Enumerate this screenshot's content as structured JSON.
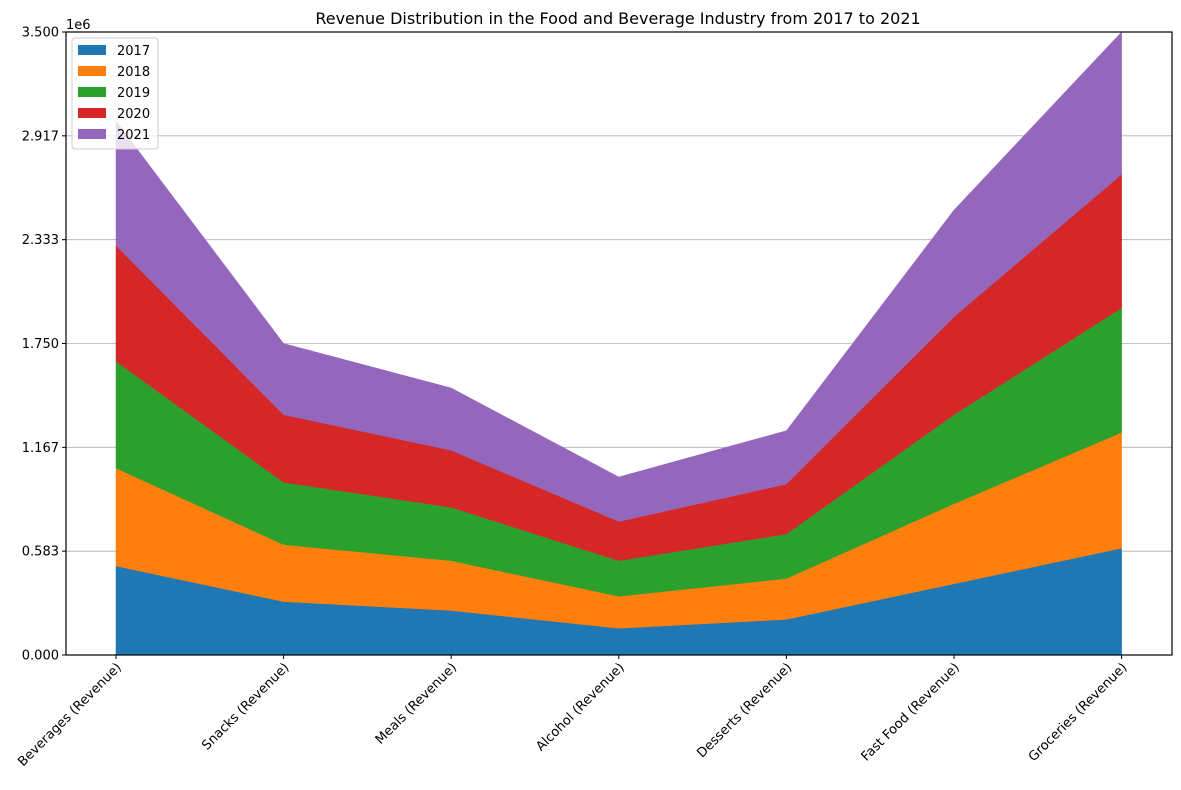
{
  "chart_data": {
    "type": "area",
    "stacked": true,
    "title": "Revenue Distribution in the Food and Beverage Industry from 2017 to 2021",
    "xlabel": "",
    "ylabel": "",
    "y_multiplier_label": "1e6",
    "categories": [
      "Beverages (Revenue)",
      "Snacks (Revenue)",
      "Meals (Revenue)",
      "Alcohol (Revenue)",
      "Desserts (Revenue)",
      "Fast Food (Revenue)",
      "Groceries (Revenue)"
    ],
    "yticks": [
      "0.000",
      "0.583",
      "1.167",
      "1.750",
      "2.333",
      "2.917",
      "3.500"
    ],
    "ylim": [
      0,
      3500000
    ],
    "grid": "y",
    "legend_position": "top-left",
    "series": [
      {
        "name": "2017",
        "color": "#1f77b4",
        "values": [
          500000,
          300000,
          250000,
          150000,
          200000,
          400000,
          600000
        ]
      },
      {
        "name": "2018",
        "color": "#ff7f0e",
        "values": [
          550000,
          320000,
          280000,
          180000,
          230000,
          450000,
          650000
        ]
      },
      {
        "name": "2019",
        "color": "#2ca02c",
        "values": [
          600000,
          350000,
          300000,
          200000,
          250000,
          500000,
          700000
        ]
      },
      {
        "name": "2020",
        "color": "#d62728",
        "values": [
          650000,
          380000,
          320000,
          220000,
          280000,
          550000,
          750000
        ]
      },
      {
        "name": "2021",
        "color": "#9467bd",
        "values": [
          700000,
          400000,
          350000,
          250000,
          300000,
          600000,
          800000
        ]
      }
    ]
  }
}
